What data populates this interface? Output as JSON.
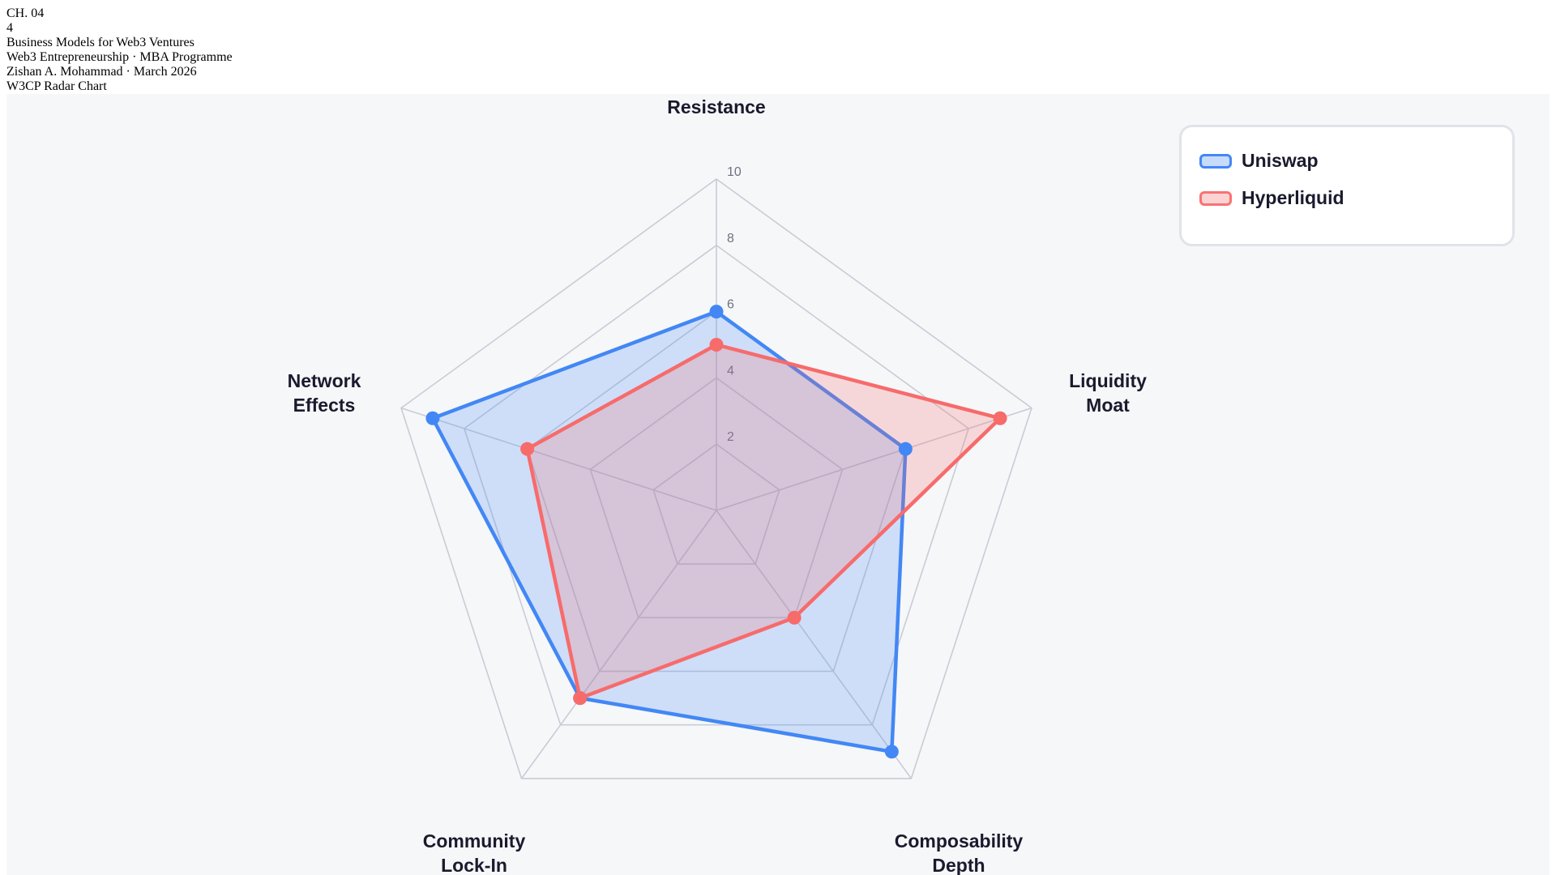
{
  "header": {
    "chapter": "CH. 04",
    "chapter_number": "4",
    "title": "Business Models for Web3 Ventures",
    "course": "Web3 Entrepreneurship · MBA Programme",
    "author_date": "Zishan A. Mohammad · March 2026",
    "figure_label": "W3CP Radar Chart"
  },
  "colors": {
    "uniswap": "#3b82f6",
    "hyperliquid": "#f87171",
    "grid": "#c9ccd6",
    "panel_bg": "#f6f7f9"
  },
  "legend": {
    "items": [
      {
        "label": "Uniswap",
        "stroke": "#4287f5",
        "fill": "#c7dbfb"
      },
      {
        "label": "Hyperliquid",
        "stroke": "#f77373",
        "fill": "#fbd3d3"
      }
    ]
  },
  "chart_data": {
    "type": "radar",
    "title": "W3CP Radar Chart",
    "axes": [
      {
        "label": [
          "Resistance"
        ],
        "visible_text": "Resistance"
      },
      {
        "label": [
          "Liquidity",
          "Moat"
        ],
        "visible_text": "Liquidity Moat"
      },
      {
        "label": [
          "Composability",
          "Depth"
        ],
        "visible_text": "Composability Depth"
      },
      {
        "label": [
          "Community",
          "Lock-In"
        ],
        "visible_text": "Community Lock-In"
      },
      {
        "label": [
          "Network",
          "Effects"
        ],
        "visible_text": "Network Effects"
      }
    ],
    "categories": [
      "Resistance",
      "Liquidity Moat",
      "Composability Depth",
      "Community Lock-In",
      "Network Effects"
    ],
    "series": [
      {
        "name": "Uniswap",
        "values": [
          6,
          6,
          9,
          7,
          9
        ],
        "stroke": "#4287f5",
        "fill": "rgba(66,135,245,0.22)"
      },
      {
        "name": "Hyperliquid",
        "values": [
          5,
          9,
          4,
          7,
          6
        ],
        "stroke": "#f76b6b",
        "fill": "rgba(247,107,107,0.22)"
      }
    ],
    "r_range": [
      0,
      10
    ],
    "ticks": [
      2,
      4,
      6,
      8,
      10
    ],
    "grid": true,
    "legend_position": "top-right"
  }
}
